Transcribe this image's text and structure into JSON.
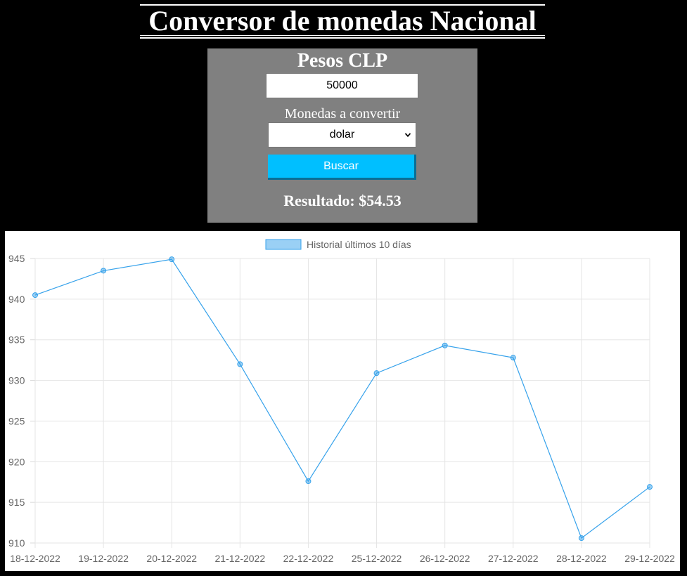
{
  "page": {
    "title": "Conversor de monedas Nacional"
  },
  "converter": {
    "heading": "Pesos CLP",
    "amount_value": "50000",
    "select_label": "Monedas a convertir",
    "selected_currency": "dolar",
    "search_label": "Buscar",
    "result_text": "Resultado: $54.53"
  },
  "colors": {
    "panel": "#808080",
    "button": "#00bfff",
    "line": "#36a2eb",
    "background": "#000000"
  },
  "chart_data": {
    "type": "line",
    "legend": "Historial últimos 10 días",
    "legend_position": "top",
    "grid": true,
    "categories": [
      "18-12-2022",
      "19-12-2022",
      "20-12-2022",
      "21-12-2022",
      "22-12-2022",
      "25-12-2022",
      "26-12-2022",
      "27-12-2022",
      "28-12-2022",
      "29-12-2022"
    ],
    "values": [
      940.5,
      943.5,
      944.9,
      932.0,
      917.6,
      930.9,
      934.3,
      932.8,
      910.6,
      916.9
    ],
    "y_ticks": [
      "945",
      "940",
      "935",
      "930",
      "925",
      "920",
      "915",
      "910"
    ],
    "ylim": [
      910,
      945
    ]
  }
}
